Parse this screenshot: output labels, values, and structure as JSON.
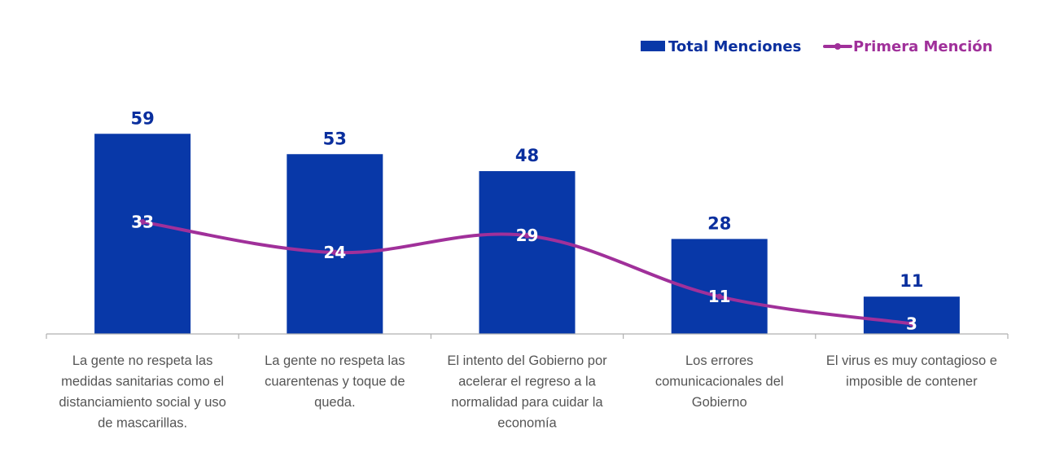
{
  "colors": {
    "bar": "#0838a8",
    "line": "#a0309a",
    "axis": "#b0b0b0",
    "bar_label": "#0a2f9e",
    "line_label": "#ffffff"
  },
  "legend": {
    "items": [
      {
        "name": "Total Menciones",
        "kind": "bar"
      },
      {
        "name": "Primera Mención",
        "kind": "line"
      }
    ],
    "placement": "top-right"
  },
  "chart_data": {
    "type": "bar",
    "categories": [
      [
        "La gente no respeta las",
        "medidas sanitarias como el",
        "distanciamiento social y uso",
        "de mascarillas."
      ],
      [
        "La gente no respeta las",
        "cuarentenas y toque de",
        "queda."
      ],
      [
        "El intento del Gobierno por",
        "acelerar el regreso a la",
        "normalidad para cuidar la",
        "economía"
      ],
      [
        "Los errores",
        "comunicacionales del",
        "Gobierno"
      ],
      [
        "El virus es muy contagioso e",
        "imposible de contener"
      ]
    ],
    "series": [
      {
        "name": "Total Menciones",
        "type": "bar",
        "values": [
          59,
          53,
          48,
          28,
          11
        ]
      },
      {
        "name": "Primera Mención",
        "type": "line",
        "values": [
          33,
          24,
          29,
          11,
          3
        ]
      }
    ],
    "ylim": [
      0,
      65
    ],
    "grid": false,
    "title": "",
    "xlabel": "",
    "ylabel": ""
  }
}
